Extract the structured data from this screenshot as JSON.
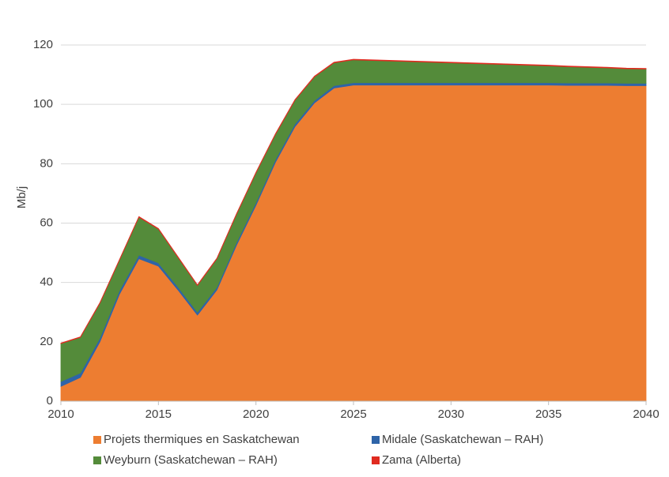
{
  "chart_data": {
    "type": "stacked-area",
    "y_label": "Mb/j",
    "x": [
      2010,
      2011,
      2012,
      2013,
      2014,
      2015,
      2016,
      2017,
      2018,
      2019,
      2020,
      2021,
      2022,
      2023,
      2024,
      2025,
      2026,
      2027,
      2028,
      2029,
      2030,
      2031,
      2032,
      2033,
      2034,
      2035,
      2036,
      2037,
      2038,
      2039,
      2040
    ],
    "xlim": [
      2010,
      2040
    ],
    "xticks": [
      2010,
      2015,
      2020,
      2025,
      2030,
      2035,
      2040
    ],
    "ylim": [
      0,
      120
    ],
    "yticks": [
      0,
      20,
      40,
      60,
      80,
      100,
      120
    ],
    "grid": true,
    "legend": "bottom",
    "series": [
      {
        "name": "Projets thermiques en Saskatchewan",
        "color": "#ed7d31",
        "values": [
          5,
          8,
          20,
          36,
          48,
          45.5,
          37.5,
          29,
          37.5,
          52.5,
          66,
          80.5,
          92.5,
          100.5,
          105.5,
          106.5,
          106.5,
          106.5,
          106.5,
          106.5,
          106.5,
          106.5,
          106.5,
          106.5,
          106.5,
          106.5,
          106.4,
          106.4,
          106.4,
          106.3,
          106.3
        ]
      },
      {
        "name": "Midale (Saskatchewan – RAH)",
        "color": "#2e64a8",
        "values": [
          1.6,
          1.5,
          1.3,
          1.2,
          1.2,
          1.1,
          1.0,
          1.0,
          0.9,
          0.9,
          0.9,
          0.9,
          0.9,
          0.8,
          0.8,
          0.8,
          0.8,
          0.8,
          0.8,
          0.8,
          0.8,
          0.8,
          0.8,
          0.8,
          0.8,
          0.8,
          0.8,
          0.8,
          0.8,
          0.8,
          0.8
        ]
      },
      {
        "name": "Weyburn (Saskatchewan – RAH)",
        "color": "#548b3a",
        "values": [
          12.8,
          12,
          11.7,
          10.3,
          12.8,
          11.4,
          10,
          9,
          9.6,
          9.5,
          10,
          8.5,
          8,
          8,
          7.7,
          7.7,
          7.5,
          7.3,
          7.1,
          6.9,
          6.7,
          6.5,
          6.3,
          6.1,
          5.9,
          5.7,
          5.5,
          5.3,
          5.1,
          4.9,
          4.8
        ]
      },
      {
        "name": "Zama (Alberta)",
        "color": "#e02b20",
        "values": [
          0.2,
          0.2,
          0.2,
          0.2,
          0.2,
          0.2,
          0.2,
          0.2,
          0.2,
          0.2,
          0.2,
          0.2,
          0.2,
          0.2,
          0.2,
          0.2,
          0.2,
          0.2,
          0.2,
          0.2,
          0.2,
          0.2,
          0.2,
          0.2,
          0.2,
          0.2,
          0.2,
          0.2,
          0.2,
          0.2,
          0.2
        ]
      }
    ]
  }
}
